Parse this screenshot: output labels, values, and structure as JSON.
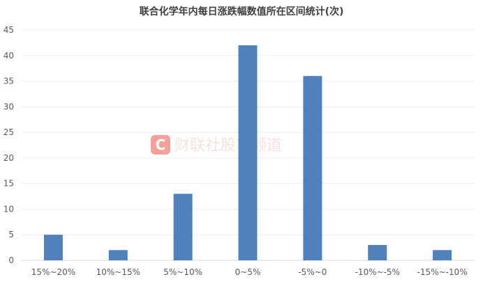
{
  "chart_data": {
    "type": "bar",
    "title": "联合化学年内每日涨跌幅数值所在区间统计(次)",
    "categories": [
      "15%~20%",
      "10%~15%",
      "5%~10%",
      "0~5%",
      "-5%~0",
      "-10%~-5%",
      "-15%~-10%"
    ],
    "values": [
      5,
      2,
      13,
      42,
      36,
      3,
      2
    ],
    "ylim": [
      0,
      45
    ],
    "yticks": [
      0,
      5,
      10,
      15,
      20,
      25,
      30,
      35,
      40,
      45
    ],
    "grid": true,
    "bar_color": "#4f81bd",
    "xlabel": "",
    "ylabel": ""
  },
  "watermark": {
    "logo_letter": "C",
    "text": "财联社股市频道",
    "color": "#e8554e"
  }
}
